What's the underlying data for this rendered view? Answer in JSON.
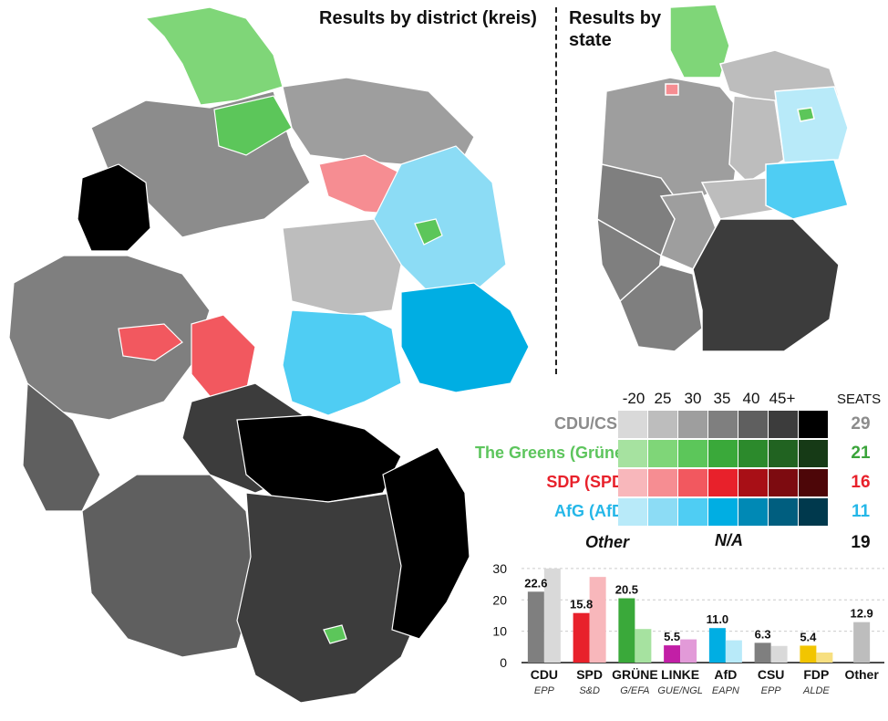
{
  "titles": {
    "district": "Results by district (kreis)",
    "state": "Results by state"
  },
  "legend": {
    "ticks": [
      "-20",
      "25",
      "30",
      "35",
      "40",
      "45+"
    ],
    "seats_header": "SEATS",
    "parties": [
      {
        "key": "cdu",
        "label": "CDU/CSU",
        "label_color": "#8c8c8c",
        "seats": "29",
        "seat_color": "#8c8c8c",
        "colors": [
          "#d9d9d9",
          "#bdbdbd",
          "#9e9e9e",
          "#7f7f7f",
          "#5f5f5f",
          "#3c3c3c",
          "#000000"
        ]
      },
      {
        "key": "gruene",
        "label": "The Greens (Grüne)",
        "label_color": "#5dc55d",
        "seats": "21",
        "seat_color": "#3aa43a",
        "colors": [
          "#a6e2a0",
          "#7fd678",
          "#5cc65a",
          "#3aa93a",
          "#2c8a2c",
          "#216321",
          "#163a16"
        ]
      },
      {
        "key": "spd",
        "label": "SDP (SPD)",
        "label_color": "#e8212b",
        "seats": "16",
        "seat_color": "#e8212b",
        "colors": [
          "#f8b7bb",
          "#f68d92",
          "#f2585f",
          "#e8212b",
          "#a80f16",
          "#7d0b10",
          "#4d0608"
        ]
      },
      {
        "key": "afd",
        "label": "AfG (AfD)",
        "label_color": "#25b7e8",
        "seats": "11",
        "seat_color": "#25b7e8",
        "colors": [
          "#b8eaf9",
          "#8cdcf5",
          "#4fcdf3",
          "#00aee3",
          "#0089b5",
          "#005e7f",
          "#00394d"
        ]
      },
      {
        "key": "other",
        "label": "Other",
        "label_color": "#111111",
        "seats": "19",
        "seat_color": "#111111",
        "colors": []
      }
    ],
    "other_value": "N/A"
  },
  "chart_data": {
    "type": "bar",
    "categories": [
      "CDU",
      "SPD",
      "GRÜNE",
      "LINKE",
      "AfD",
      "CSU",
      "FDP",
      "Other"
    ],
    "sub_labels": [
      "EPP",
      "S&D",
      "G/EFA",
      "GUE/NGL",
      "EAPN",
      "EPP",
      "ALDE",
      ""
    ],
    "series": [
      {
        "values": [
          22.6,
          15.8,
          20.5,
          5.5,
          11.0,
          6.3,
          5.4,
          12.9
        ],
        "colors": [
          "#7f7f7f",
          "#e8212b",
          "#3aa93a",
          "#c21fa6",
          "#00aee3",
          "#7f7f7f",
          "#f2c500",
          "#bdbdbd"
        ]
      },
      {
        "values": [
          30.0,
          27.3,
          10.7,
          7.4,
          7.1,
          5.3,
          3.2,
          null
        ],
        "colors": [
          "#d9d9d9",
          "#f8b7bb",
          "#a6e2a0",
          "#e29ad8",
          "#b8eaf9",
          "#d9d9d9",
          "#f7df80",
          "#ffffff"
        ]
      }
    ],
    "data_labels": [
      "22.6",
      "15.8",
      "20.5",
      "5.5",
      "11.0",
      "6.3",
      "5.4",
      "12.9"
    ],
    "yticks": [
      0,
      10,
      20,
      30
    ],
    "ylim": [
      0,
      32
    ]
  }
}
